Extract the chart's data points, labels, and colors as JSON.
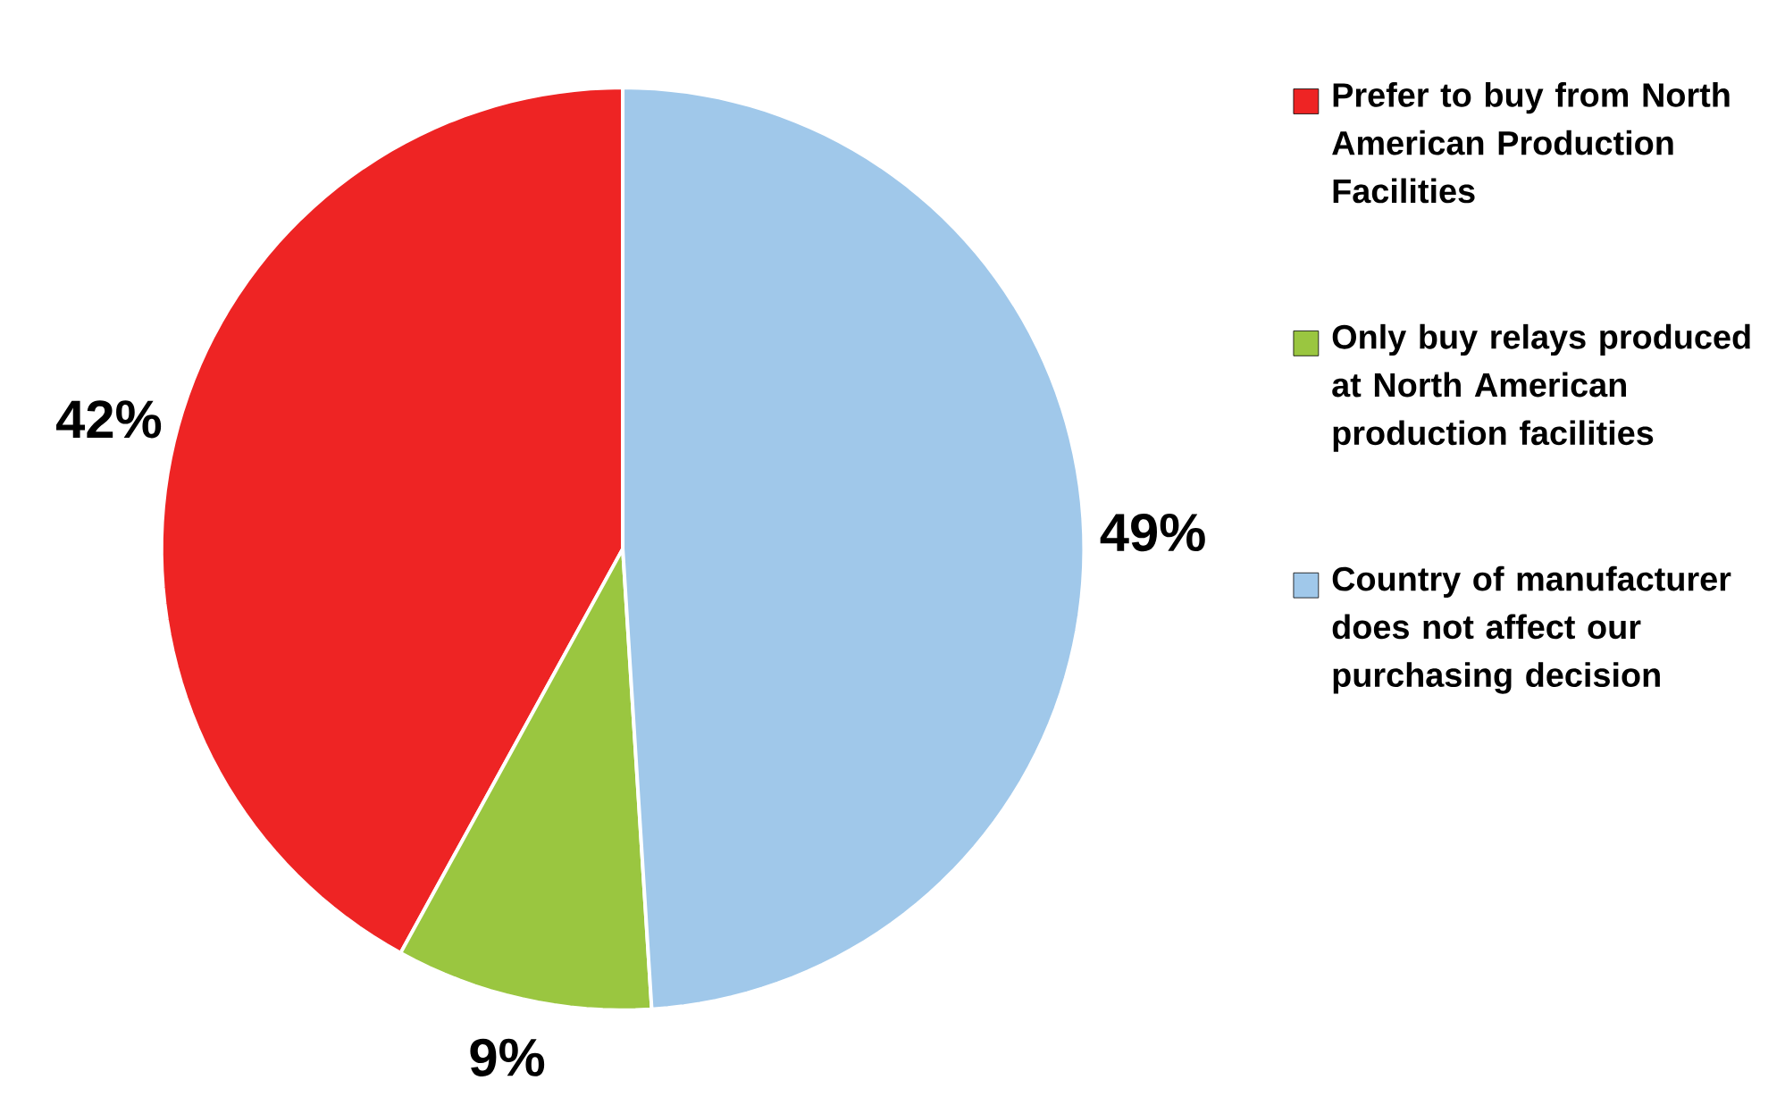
{
  "chart_data": {
    "type": "pie",
    "categories": [
      "Prefer to buy from North American Production Facilities",
      "Only buy relays produced at North American production facilities",
      "Country of manufacturer does not affect our purchasing decision"
    ],
    "values": [
      42,
      9,
      49
    ],
    "colors": [
      "#ee2424",
      "#9ac640",
      "#a0c8ea"
    ],
    "value_labels": [
      "42%",
      "9%",
      "49%"
    ],
    "legend": "right"
  }
}
